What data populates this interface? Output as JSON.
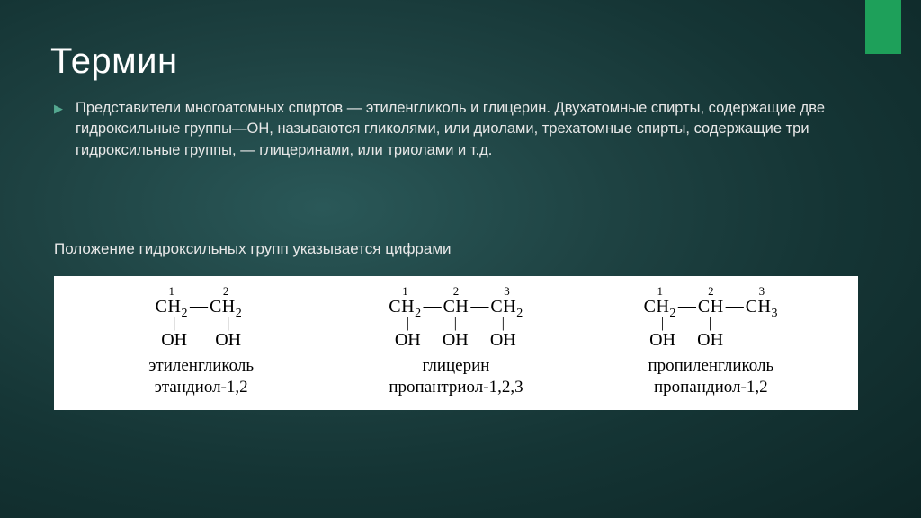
{
  "accent_color": "#1ea05a",
  "title": "Термин",
  "paragraph": "Представители многоатомных спиртов — этиленгликоль и глицерин. Двухатомные спирты, содержащие две гидроксильные группы—ОН, называются гликолями, или диолами, трехатомные спирты, содержащие три гидроксильные группы, — глицеринами, или триолами и т.д.",
  "subheading": "Положение гидроксильных групп указывается цифрами",
  "molecules": [
    {
      "carbons": [
        {
          "num": "1",
          "label": "CH",
          "sub": "2",
          "oh": true
        },
        {
          "num": "2",
          "label": "CH",
          "sub": "2",
          "oh": true
        }
      ],
      "trivial": "этиленгликоль",
      "iupac": "этандиол-1,2"
    },
    {
      "carbons": [
        {
          "num": "1",
          "label": "CH",
          "sub": "2",
          "oh": true
        },
        {
          "num": "2",
          "label": "CH",
          "sub": "",
          "oh": true
        },
        {
          "num": "3",
          "label": "CH",
          "sub": "2",
          "oh": true
        }
      ],
      "trivial": "глицерин",
      "iupac": "пропантриол-1,2,3"
    },
    {
      "carbons": [
        {
          "num": "1",
          "label": "CH",
          "sub": "2",
          "oh": true
        },
        {
          "num": "2",
          "label": "CH",
          "sub": "",
          "oh": true
        },
        {
          "num": "3",
          "label": "CH",
          "sub": "3",
          "oh": false
        }
      ],
      "trivial": "пропиленгликоль",
      "iupac": "пропандиол-1,2"
    }
  ],
  "oh_label": "OH",
  "chem_box_bg": "#ffffff"
}
